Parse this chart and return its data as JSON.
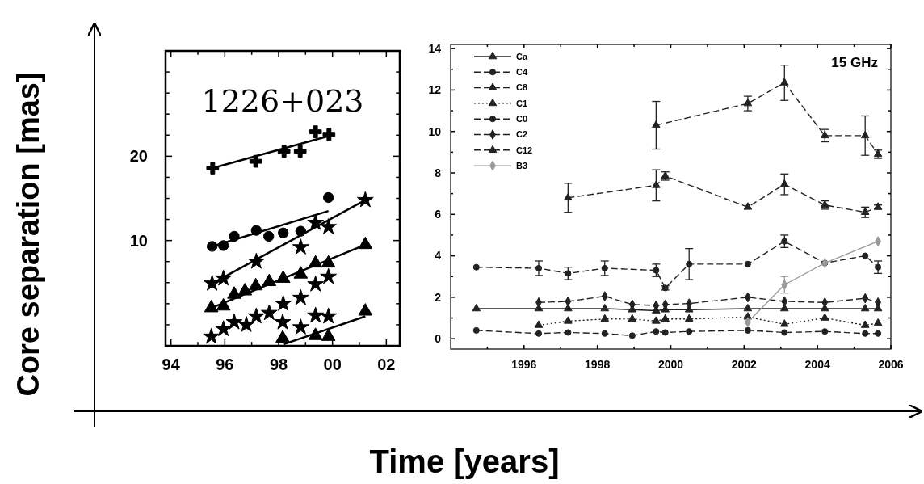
{
  "chart_data": [
    {
      "type": "scatter",
      "title": "1226+023",
      "xlabel": "Time [years]",
      "ylabel": "Core separation [mas]",
      "xlim": [
        1993.8,
        2002.5
      ],
      "ylim": [
        -2.5,
        32.5
      ],
      "xticks": [
        {
          "value": 1994,
          "label": "94"
        },
        {
          "value": 1995,
          "label": null
        },
        {
          "value": 1996,
          "label": "96"
        },
        {
          "value": 1997,
          "label": null
        },
        {
          "value": 1998,
          "label": "98"
        },
        {
          "value": 1999,
          "label": null
        },
        {
          "value": 2000,
          "label": "00"
        },
        {
          "value": 2001,
          "label": null
        },
        {
          "value": 2002,
          "label": "02"
        }
      ],
      "yticks": [
        {
          "value": 0,
          "label": null
        },
        {
          "value": 2.5,
          "label": null
        },
        {
          "value": 5,
          "label": null
        },
        {
          "value": 7.5,
          "label": null
        },
        10,
        {
          "value": 12.5,
          "label": null
        },
        {
          "value": 15,
          "label": null
        },
        {
          "value": 17.5,
          "label": null
        },
        20,
        {
          "value": 22.5,
          "label": null
        },
        {
          "value": 25,
          "label": null
        },
        {
          "value": 27.5,
          "label": null
        },
        {
          "value": 30,
          "label": null
        }
      ],
      "series": [
        {
          "type": "scatter",
          "marker": "cross",
          "color": "#000000",
          "x": [
            1995.55,
            1997.15,
            1998.2,
            1998.8,
            1999.37,
            1999.87
          ],
          "values": [
            18.6,
            19.4,
            20.6,
            20.6,
            22.9,
            22.6
          ]
        },
        {
          "type": "line",
          "marker": "none",
          "line_style": "solid",
          "color": "#000000",
          "x": [
            1995.55,
            1999.87
          ],
          "values": [
            18.6,
            22.4
          ]
        },
        {
          "type": "scatter",
          "marker": "circle",
          "color": "#000000",
          "x": [
            1995.53,
            1995.95,
            1996.35,
            1997.17,
            1997.63,
            1998.17,
            1998.82,
            1999.85
          ],
          "values": [
            9.3,
            9.4,
            10.5,
            11.2,
            10.5,
            10.9,
            11.1,
            15.1
          ]
        },
        {
          "type": "line",
          "marker": "none",
          "line_style": "solid",
          "color": "#000000",
          "x": [
            1995.53,
            1999.85
          ],
          "values": [
            9.3,
            13.5
          ]
        },
        {
          "type": "scatter",
          "marker": "star",
          "color": "#000000",
          "x": [
            1995.53,
            1995.95,
            1997.17,
            1998.82,
            1999.37,
            1999.85,
            2001.22
          ],
          "values": [
            4.9,
            5.5,
            7.5,
            9.2,
            12.1,
            11.6,
            14.8
          ]
        },
        {
          "type": "line",
          "marker": "none",
          "line_style": "solid",
          "color": "#000000",
          "x": [
            1995.53,
            2001.22
          ],
          "values": [
            4.9,
            14.8
          ]
        },
        {
          "type": "scatter",
          "marker": "triangle",
          "color": "#000000",
          "x": [
            1995.5,
            1995.95,
            1996.35,
            1996.75,
            1997.15,
            1997.65,
            1998.17,
            1998.82,
            1999.37,
            1999.85,
            2001.22
          ],
          "values": [
            2.0,
            2.2,
            3.6,
            4.0,
            4.6,
            5.1,
            5.5,
            6.0,
            7.3,
            7.3,
            9.5
          ]
        },
        {
          "type": "line",
          "marker": "none",
          "line_style": "solid",
          "color": "#000000",
          "x": [
            1995.5,
            2001.22
          ],
          "values": [
            2.0,
            9.5
          ]
        },
        {
          "type": "scatter",
          "marker": "star",
          "color": "#000000",
          "x": [
            1995.5,
            1995.95,
            1996.35,
            1996.8,
            1997.17,
            1997.65,
            1998.17,
            1998.82,
            1999.37,
            1999.85
          ],
          "values": [
            -1.4,
            -0.5,
            0.3,
            0.0,
            1.0,
            1.4,
            2.5,
            3.2,
            4.8,
            5.7
          ]
        },
        {
          "type": "scatter",
          "marker": "star",
          "color": "#000000",
          "x": [
            1998.15,
            1998.82,
            1999.37,
            1999.85
          ],
          "values": [
            0.3,
            -0.3,
            1.1,
            1.0
          ]
        },
        {
          "type": "scatter",
          "marker": "triangle",
          "color": "#000000",
          "x": [
            1998.15,
            1999.37,
            1999.85,
            2001.22
          ],
          "values": [
            -1.6,
            -1.3,
            -1.4,
            1.6
          ]
        },
        {
          "type": "line",
          "marker": "none",
          "line_style": "solid",
          "color": "#000000",
          "x": [
            1998.2,
            2001.22
          ],
          "values": [
            -2.3,
            1.0
          ]
        }
      ]
    },
    {
      "type": "line",
      "annotations": [
        "15 GHz"
      ],
      "legend": "top left",
      "xlim": [
        1994,
        2006
      ],
      "ylim": [
        -0.5,
        14.2
      ],
      "xticks": [
        {
          "value": 1995,
          "label": null
        },
        1996,
        {
          "value": 1997,
          "label": null
        },
        1998,
        {
          "value": 1999,
          "label": null
        },
        2000,
        {
          "value": 2001,
          "label": null
        },
        2002,
        {
          "value": 2003,
          "label": null
        },
        2004,
        {
          "value": 2005,
          "label": null
        },
        2006
      ],
      "yticks": [
        0,
        {
          "value": 1,
          "label": null
        },
        2,
        {
          "value": 3,
          "label": null
        },
        4,
        {
          "value": 5,
          "label": null
        },
        6,
        {
          "value": 7,
          "label": null
        },
        8,
        {
          "value": 9,
          "label": null
        },
        10,
        {
          "value": 11,
          "label": null
        },
        12,
        {
          "value": 13,
          "label": null
        },
        14
      ],
      "series": [
        {
          "name": "Ca",
          "marker": "triangle",
          "line_style": "solid",
          "color": "#222222",
          "x": [
            1994.7,
            1996.4,
            1997.2,
            1998.2,
            1998.95,
            1999.6,
            1999.85,
            2000.5,
            2002.1,
            2003.1,
            2004.2,
            2005.3,
            2005.65
          ],
          "values": [
            1.45,
            1.45,
            1.45,
            1.45,
            1.4,
            1.35,
            1.4,
            1.4,
            1.45,
            1.45,
            1.45,
            1.45,
            1.45
          ]
        },
        {
          "name": "C4",
          "marker": "circle",
          "line_style": "dashed",
          "color": "#222222",
          "x": [
            1994.7,
            1996.4,
            1997.2,
            1998.2,
            1999.6,
            1999.85,
            2000.5,
            2002.1,
            2003.1,
            2004.2,
            2005.3,
            2005.65
          ],
          "values": [
            3.45,
            3.4,
            3.15,
            3.4,
            3.3,
            2.45,
            3.6,
            3.6,
            4.7,
            3.65,
            4.0,
            3.45
          ],
          "errors": [
            null,
            0.35,
            0.3,
            0.35,
            0.3,
            0.1,
            0.75,
            null,
            0.3,
            null,
            null,
            0.3
          ]
        },
        {
          "name": "C8",
          "marker": "triangle",
          "line_style": "dashed",
          "color": "#222222",
          "x": [
            1997.2,
            1999.6,
            1999.85,
            2002.1,
            2003.1,
            2004.2,
            2005.3,
            2005.65
          ],
          "values": [
            6.8,
            7.4,
            7.85,
            6.35,
            7.45,
            6.45,
            6.1,
            6.35
          ],
          "errors": [
            0.7,
            0.75,
            0.2,
            null,
            0.5,
            0.2,
            0.25,
            0.1
          ]
        },
        {
          "name": "C1",
          "marker": "triangle",
          "line_style": "dotted",
          "color": "#222222",
          "x": [
            1996.4,
            1997.2,
            1998.2,
            1998.95,
            1999.6,
            1999.85,
            2000.5,
            2002.1,
            2003.1,
            2004.2,
            2005.3,
            2005.65
          ],
          "values": [
            0.65,
            0.85,
            0.95,
            0.95,
            0.85,
            0.95,
            0.95,
            1.05,
            0.7,
            1.0,
            0.65,
            0.75
          ]
        },
        {
          "name": "C0",
          "marker": "circle",
          "line_style": "dashed",
          "color": "#222222",
          "x": [
            1994.7,
            1996.4,
            1997.2,
            1998.2,
            1998.95,
            1999.6,
            1999.85,
            2000.5,
            2002.1,
            2003.1,
            2004.2,
            2005.3,
            2005.65
          ],
          "values": [
            0.4,
            0.25,
            0.3,
            0.25,
            0.15,
            0.35,
            0.3,
            0.35,
            0.4,
            0.3,
            0.35,
            0.25,
            0.25
          ]
        },
        {
          "name": "C2",
          "marker": "diamond",
          "line_style": "dashed",
          "color": "#222222",
          "x": [
            1996.4,
            1997.2,
            1998.2,
            1998.95,
            1999.6,
            1999.85,
            2000.5,
            2002.1,
            2003.1,
            2004.2,
            2005.3,
            2005.65
          ],
          "values": [
            1.75,
            1.8,
            2.05,
            1.65,
            1.6,
            1.65,
            1.7,
            2.0,
            1.8,
            1.75,
            1.95,
            1.75
          ]
        },
        {
          "name": "C12",
          "marker": "triangle",
          "line_style": "dashed",
          "color": "#222222",
          "x": [
            1999.6,
            2002.1,
            2003.1,
            2004.2,
            2005.3,
            2005.65
          ],
          "values": [
            10.3,
            11.35,
            12.35,
            9.8,
            9.8,
            8.9
          ],
          "errors": [
            1.15,
            0.35,
            0.85,
            0.3,
            0.95,
            0.2
          ]
        },
        {
          "name": "B3",
          "marker": "diamond",
          "line_style": "solid",
          "color": "#9a9a9a",
          "x": [
            2002.1,
            2003.1,
            2004.2,
            2005.65
          ],
          "values": [
            0.8,
            2.6,
            3.65,
            4.7
          ],
          "errors": [
            null,
            0.4,
            null,
            null
          ]
        }
      ]
    }
  ]
}
